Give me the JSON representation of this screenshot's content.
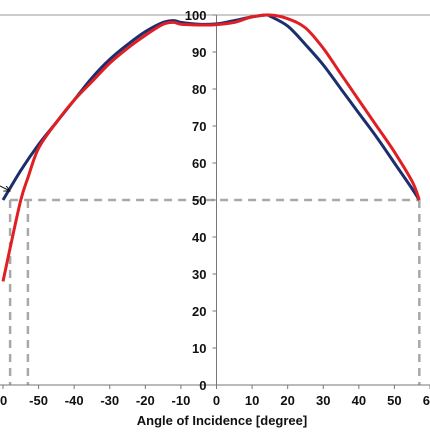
{
  "chart_data": {
    "type": "line",
    "title": "",
    "xlabel": "Angle of Incidence [degree]",
    "ylabel": "",
    "xlim": [
      -60,
      60
    ],
    "ylim": [
      0,
      100
    ],
    "x_tick_labels": [
      "0",
      "-50",
      "-40",
      "-30",
      "-20",
      "-10",
      "0",
      "10",
      "20",
      "30",
      "40",
      "50",
      "6"
    ],
    "y_tick_labels": [
      "0",
      "10",
      "20",
      "30",
      "40",
      "50",
      "60",
      "70",
      "80",
      "90",
      "100"
    ],
    "grid": "top border only",
    "series": [
      {
        "color": "#1b2f6e",
        "x": [
          -60,
          -55,
          -50,
          -45,
          -40,
          -35,
          -30,
          -25,
          -20,
          -15,
          -12,
          -10,
          -5,
          0,
          5,
          10,
          14,
          15,
          20,
          25,
          30,
          35,
          40,
          45,
          50,
          55,
          57
        ],
        "y": [
          50,
          58,
          65,
          71,
          77,
          83,
          88,
          92,
          95.5,
          98,
          98.5,
          98,
          97.5,
          97.6,
          98.5,
          99.5,
          100,
          99.7,
          97,
          92,
          86.5,
          80,
          73.5,
          67,
          60,
          53,
          50
        ]
      },
      {
        "color": "#e01f25",
        "x": [
          -60,
          -58,
          -55,
          -53,
          -50,
          -45,
          -40,
          -35,
          -30,
          -25,
          -20,
          -15,
          -12,
          -10,
          -5,
          0,
          5,
          10,
          15,
          20,
          25,
          30,
          35,
          40,
          45,
          50,
          55,
          57
        ],
        "y": [
          28,
          37,
          50,
          56,
          64,
          71,
          77,
          82,
          87,
          91,
          94.5,
          97.5,
          98,
          97.5,
          97.3,
          97.4,
          98,
          99.5,
          100,
          99,
          96.5,
          91,
          84,
          77,
          70,
          63,
          55,
          50
        ]
      }
    ],
    "reference_lines": {
      "y": 50,
      "x_left": [
        -58,
        -53
      ],
      "x_right": 57
    }
  },
  "annotation": {
    "arrow_symbol": "→"
  }
}
